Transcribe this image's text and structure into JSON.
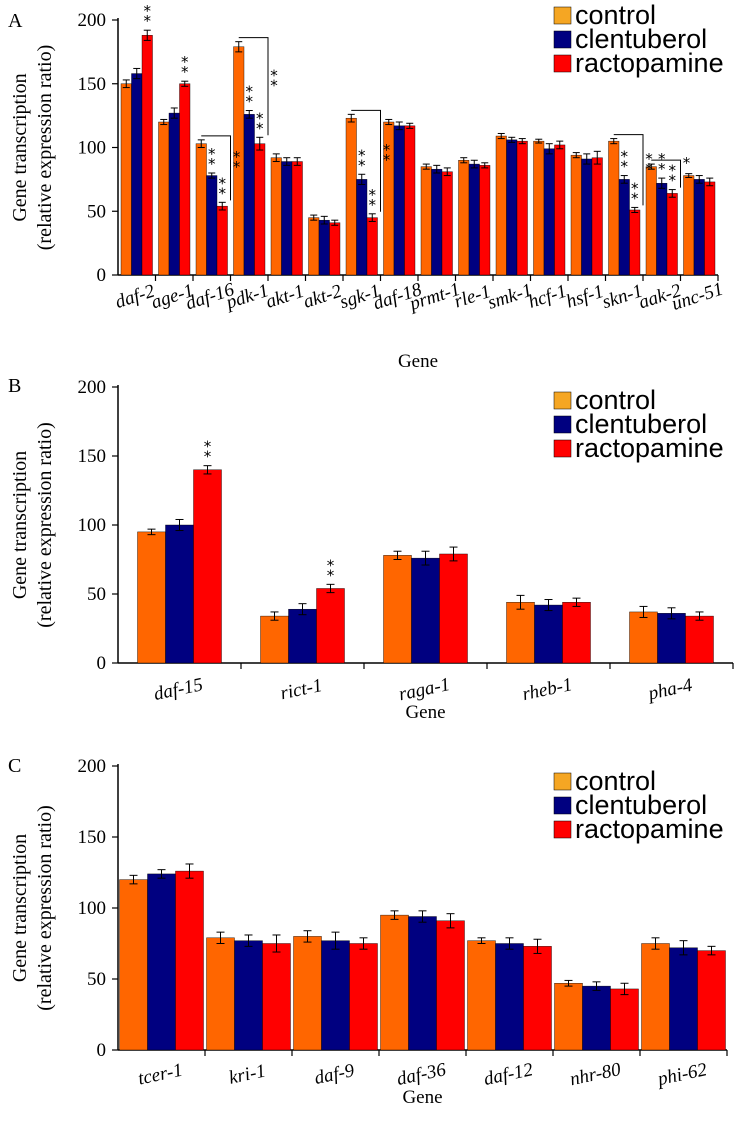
{
  "colors": {
    "control": "#FF6600",
    "control_legend": "#F5A623",
    "clentuberol": "#000080",
    "ractopamine": "#FF0000",
    "error_bar": "#000000",
    "axis": "#000000"
  },
  "chart_data": [
    {
      "type": "bar",
      "panel_label": "A",
      "ylabel_line1": "Gene transcription",
      "ylabel_line2": "(relative expression ratio)",
      "xlabel": "Gene",
      "ylim": [
        0,
        200
      ],
      "yticks": [
        0,
        50,
        100,
        150,
        200
      ],
      "yticks_labels": [
        "0",
        "50",
        "100",
        "150",
        "200"
      ],
      "legend_position": "top-right",
      "categories": [
        "daf-2",
        "age-1",
        "daf-16",
        "pdk-1",
        "akt-1",
        "akt-2",
        "sgk-1",
        "daf-18",
        "prmt-1",
        "rle-1",
        "smk-1",
        "hcf-1",
        "hsf-1",
        "skn-1",
        "aak-2",
        "unc-51"
      ],
      "series": [
        {
          "name": "control",
          "values": [
            150,
            120,
            103,
            179,
            92,
            45,
            123,
            120,
            85,
            90,
            109,
            105,
            94,
            105,
            85,
            78
          ],
          "errors": [
            3,
            2,
            3,
            4,
            3,
            2,
            3,
            2,
            2,
            2,
            2,
            1.5,
            2,
            2,
            2,
            1.5
          ]
        },
        {
          "name": "clentuberol",
          "values": [
            158,
            127,
            78,
            126,
            89,
            43,
            75,
            117,
            83,
            87,
            106,
            99,
            91,
            75,
            72,
            75
          ],
          "errors": [
            4,
            4,
            2,
            3,
            3,
            3,
            4,
            3,
            3,
            3,
            2,
            4,
            4,
            3,
            4,
            3
          ]
        },
        {
          "name": "ractopamine",
          "values": [
            188,
            150,
            54,
            103,
            89,
            41,
            45,
            117,
            81,
            86,
            105,
            102,
            92,
            51,
            64,
            73
          ],
          "errors": [
            4,
            2,
            3,
            5,
            3,
            2,
            3,
            2,
            3,
            2,
            2,
            3,
            5,
            2,
            3,
            3
          ]
        }
      ],
      "significance": [
        {
          "category": "daf-2",
          "series": "ractopamine",
          "marker": "**"
        },
        {
          "category": "age-1",
          "series": "ractopamine",
          "marker": "**"
        },
        {
          "category": "daf-16",
          "series": "clentuberol",
          "marker": "**"
        },
        {
          "category": "daf-16",
          "series": "ractopamine",
          "marker": "**"
        },
        {
          "category": "daf-16",
          "series": "bracket",
          "marker": "**"
        },
        {
          "category": "pdk-1",
          "series": "clentuberol",
          "marker": "**"
        },
        {
          "category": "pdk-1",
          "series": "ractopamine",
          "marker": "**"
        },
        {
          "category": "pdk-1",
          "series": "bracket",
          "marker": "**"
        },
        {
          "category": "sgk-1",
          "series": "clentuberol",
          "marker": "**"
        },
        {
          "category": "sgk-1",
          "series": "ractopamine",
          "marker": "**"
        },
        {
          "category": "sgk-1",
          "series": "bracket",
          "marker": "**"
        },
        {
          "category": "skn-1",
          "series": "clentuberol",
          "marker": "**"
        },
        {
          "category": "skn-1",
          "series": "ractopamine",
          "marker": "**"
        },
        {
          "category": "skn-1",
          "series": "bracket",
          "marker": "**"
        },
        {
          "category": "aak-2",
          "series": "clentuberol",
          "marker": "**"
        },
        {
          "category": "aak-2",
          "series": "ractopamine",
          "marker": "**"
        },
        {
          "category": "aak-2",
          "series": "bracket",
          "marker": "*"
        }
      ]
    },
    {
      "type": "bar",
      "panel_label": "B",
      "ylabel_line1": "Gene transcription",
      "ylabel_line2": "(relative expression ratio)",
      "xlabel": "Gene",
      "ylim": [
        0,
        200
      ],
      "yticks": [
        0,
        50,
        100,
        150,
        200
      ],
      "yticks_labels": [
        "0",
        "50",
        "100",
        "150",
        "200"
      ],
      "legend_position": "top-right",
      "categories": [
        "daf-15",
        "rict-1",
        "raga-1",
        "rheb-1",
        "pha-4"
      ],
      "series": [
        {
          "name": "control",
          "values": [
            95,
            34,
            78,
            44,
            37
          ],
          "errors": [
            2,
            3,
            3,
            5,
            4
          ]
        },
        {
          "name": "clentuberol",
          "values": [
            100,
            39,
            76,
            42,
            36
          ],
          "errors": [
            4,
            4,
            5,
            4,
            4
          ]
        },
        {
          "name": "ractopamine",
          "values": [
            140,
            54,
            79,
            44,
            34
          ],
          "errors": [
            3,
            3,
            5,
            3,
            3
          ]
        }
      ],
      "significance": [
        {
          "category": "daf-15",
          "series": "ractopamine",
          "marker": "**"
        },
        {
          "category": "rict-1",
          "series": "ractopamine",
          "marker": "**"
        }
      ]
    },
    {
      "type": "bar",
      "panel_label": "C",
      "ylabel_line1": "Gene transcription",
      "ylabel_line2": "(relative expression ratio)",
      "xlabel": "Gene",
      "ylim": [
        0,
        200
      ],
      "yticks": [
        0,
        50,
        100,
        150,
        200
      ],
      "yticks_labels": [
        "0",
        "50",
        "100",
        "150",
        "200"
      ],
      "legend_position": "top-right",
      "categories": [
        "tcer-1",
        "kri-1",
        "daf-9",
        "daf-36",
        "daf-12",
        "nhr-80",
        "phi-62"
      ],
      "series": [
        {
          "name": "control",
          "values": [
            120,
            79,
            80,
            95,
            77,
            47,
            75
          ],
          "errors": [
            3,
            4,
            4,
            3,
            2,
            2,
            4
          ]
        },
        {
          "name": "clentuberol",
          "values": [
            124,
            77,
            77,
            94,
            75,
            45,
            72
          ],
          "errors": [
            3,
            4,
            6,
            4,
            4,
            3,
            5
          ]
        },
        {
          "name": "ractopamine",
          "values": [
            126,
            75,
            75,
            91,
            73,
            43,
            70
          ],
          "errors": [
            5,
            6,
            4,
            5,
            5,
            4,
            3
          ]
        }
      ],
      "significance": []
    }
  ]
}
